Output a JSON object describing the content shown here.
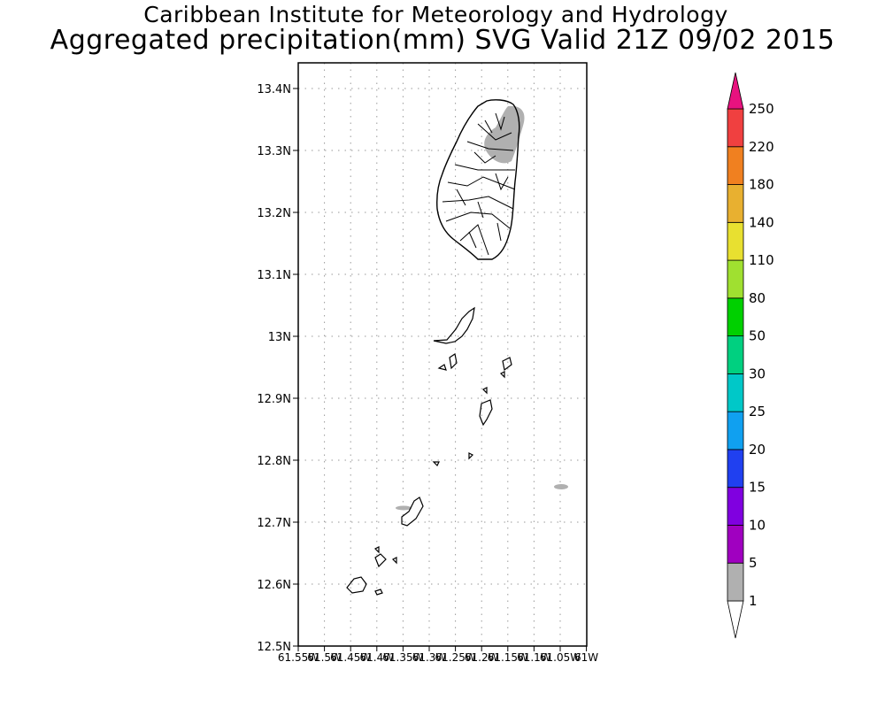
{
  "header": {
    "title": "Caribbean Institute for Meteorology and Hydrology",
    "subtitle": "Aggregated precipitation(mm) SVG Valid 21Z 09/02 2015"
  },
  "map": {
    "lat_ticks": [
      "13.4N",
      "13.3N",
      "13.2N",
      "13.1N",
      "13N",
      "12.9N",
      "12.8N",
      "12.7N",
      "12.6N",
      "12.5N"
    ],
    "lon_ticks": [
      "61.55W",
      "61.5W",
      "61.45W",
      "61.4W",
      "61.35W",
      "61.3W",
      "61.25W",
      "61.2W",
      "61.15W",
      "61.1W",
      "61.05W",
      "61W"
    ],
    "lat_range": [
      12.5,
      13.44
    ],
    "lon_range": [
      -61.55,
      -61.0
    ]
  },
  "legend": {
    "labels": [
      "1",
      "5",
      "10",
      "15",
      "20",
      "25",
      "30",
      "50",
      "80",
      "110",
      "140",
      "180",
      "220",
      "250"
    ],
    "colors": [
      "#b0b0b0",
      "#a000c0",
      "#8000e0",
      "#2040f0",
      "#10a0f0",
      "#00c8c8",
      "#00d080",
      "#00d000",
      "#a0e030",
      "#e8e030",
      "#e8b030",
      "#f08020",
      "#f04040",
      "#e8127f"
    ],
    "arrow_top_color": "#e8127f",
    "arrow_bottom_color": "#ffffff"
  }
}
